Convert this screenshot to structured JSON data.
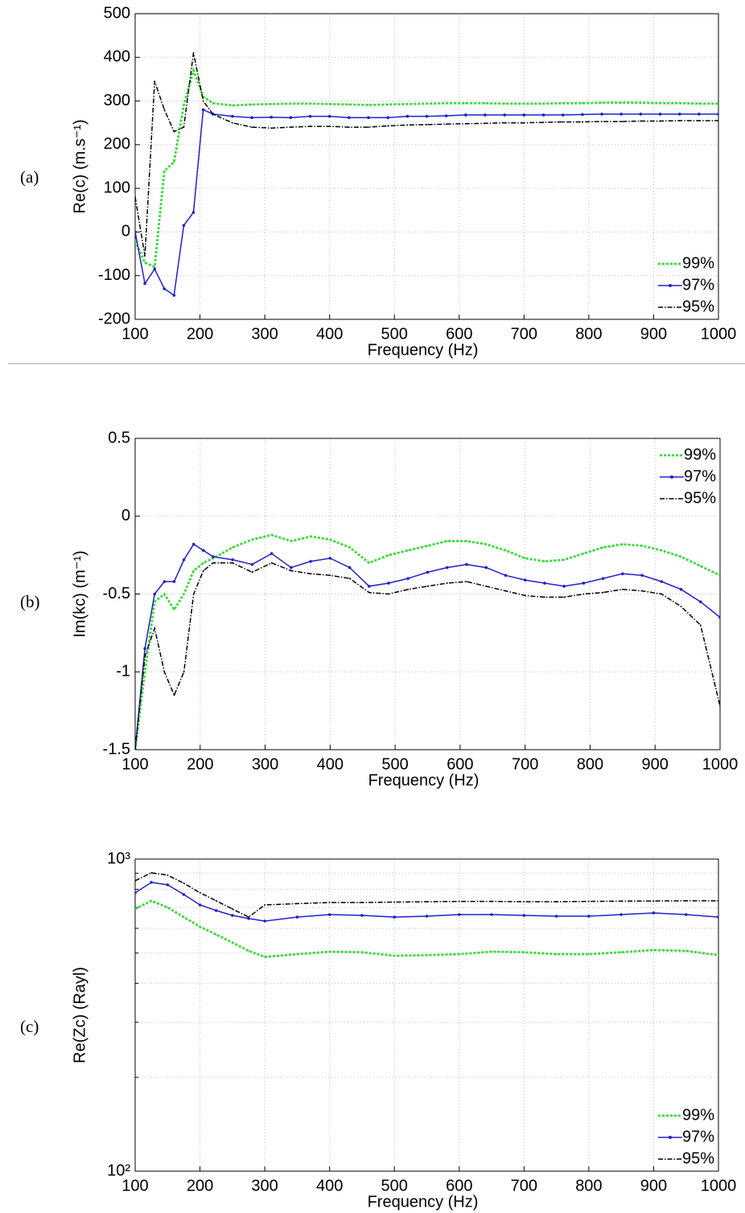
{
  "chart_data": [
    {
      "type": "line",
      "panel_label": "(a)",
      "xlabel": "Frequency (Hz)",
      "ylabel": "Re(c) (m.s⁻¹)",
      "xlim": [
        100,
        1000
      ],
      "xticks": [
        100,
        200,
        300,
        400,
        500,
        600,
        700,
        800,
        900,
        1000
      ],
      "ylim": [
        -200,
        500
      ],
      "yticks": [
        -200,
        -100,
        0,
        100,
        200,
        300,
        400,
        500
      ],
      "grid": true,
      "legend": "lower right",
      "x": [
        100,
        115,
        130,
        145,
        160,
        175,
        190,
        205,
        220,
        250,
        280,
        310,
        340,
        370,
        400,
        430,
        460,
        490,
        520,
        550,
        580,
        610,
        640,
        670,
        700,
        730,
        760,
        790,
        820,
        850,
        880,
        910,
        940,
        970,
        1000
      ],
      "series": [
        {
          "name": "99%",
          "color": "#33dd33",
          "values": [
            -20,
            -70,
            -80,
            140,
            160,
            290,
            370,
            310,
            295,
            290,
            292,
            293,
            294,
            294,
            293,
            292,
            291,
            292,
            293,
            294,
            295,
            295,
            295,
            294,
            294,
            294,
            295,
            295,
            296,
            296,
            296,
            295,
            295,
            294,
            294
          ]
        },
        {
          "name": "97%",
          "color": "#2020cc",
          "values": [
            0,
            -118,
            -85,
            -130,
            -145,
            15,
            45,
            280,
            270,
            265,
            262,
            263,
            262,
            265,
            265,
            262,
            262,
            262,
            265,
            265,
            266,
            268,
            268,
            268,
            268,
            268,
            268,
            269,
            270,
            270,
            270,
            270,
            270,
            270,
            270
          ]
        },
        {
          "name": "95%",
          "color": "#000000",
          "values": [
            80,
            -55,
            345,
            280,
            230,
            240,
            410,
            300,
            270,
            250,
            240,
            238,
            240,
            242,
            242,
            240,
            240,
            243,
            245,
            246,
            247,
            248,
            249,
            250,
            250,
            251,
            252,
            252,
            253,
            253,
            254,
            254,
            255,
            255,
            255
          ]
        }
      ]
    },
    {
      "type": "line",
      "panel_label": "(b)",
      "xlabel": "Frequency (Hz)",
      "ylabel": "Im(kc) (m⁻¹)",
      "xlim": [
        100,
        1000
      ],
      "xticks": [
        100,
        200,
        300,
        400,
        500,
        600,
        700,
        800,
        900,
        1000
      ],
      "ylim": [
        -1.5,
        0.5
      ],
      "yticks": [
        -1.5,
        -1,
        -0.5,
        0,
        0.5
      ],
      "grid": true,
      "legend": "upper right",
      "x": [
        100,
        115,
        130,
        145,
        160,
        175,
        190,
        205,
        220,
        250,
        280,
        310,
        340,
        370,
        400,
        430,
        460,
        490,
        520,
        550,
        580,
        610,
        640,
        670,
        700,
        730,
        760,
        790,
        820,
        850,
        880,
        910,
        940,
        970,
        1000
      ],
      "series": [
        {
          "name": "99%",
          "color": "#33dd33",
          "values": [
            -1.5,
            -1.0,
            -0.55,
            -0.5,
            -0.6,
            -0.5,
            -0.35,
            -0.3,
            -0.27,
            -0.2,
            -0.15,
            -0.12,
            -0.16,
            -0.13,
            -0.15,
            -0.2,
            -0.3,
            -0.25,
            -0.22,
            -0.19,
            -0.16,
            -0.16,
            -0.18,
            -0.22,
            -0.27,
            -0.29,
            -0.28,
            -0.24,
            -0.2,
            -0.18,
            -0.19,
            -0.22,
            -0.26,
            -0.32,
            -0.38
          ]
        },
        {
          "name": "97%",
          "color": "#2020cc",
          "values": [
            -1.5,
            -0.85,
            -0.5,
            -0.42,
            -0.42,
            -0.28,
            -0.18,
            -0.22,
            -0.26,
            -0.28,
            -0.31,
            -0.24,
            -0.33,
            -0.29,
            -0.27,
            -0.33,
            -0.45,
            -0.43,
            -0.4,
            -0.36,
            -0.33,
            -0.31,
            -0.33,
            -0.38,
            -0.41,
            -0.43,
            -0.45,
            -0.43,
            -0.4,
            -0.37,
            -0.38,
            -0.42,
            -0.47,
            -0.55,
            -0.65
          ]
        },
        {
          "name": "95%",
          "color": "#000000",
          "values": [
            -1.5,
            -0.9,
            -0.72,
            -1.0,
            -1.15,
            -1.0,
            -0.5,
            -0.35,
            -0.3,
            -0.3,
            -0.36,
            -0.3,
            -0.35,
            -0.37,
            -0.38,
            -0.4,
            -0.49,
            -0.5,
            -0.47,
            -0.45,
            -0.43,
            -0.42,
            -0.45,
            -0.48,
            -0.51,
            -0.52,
            -0.52,
            -0.5,
            -0.49,
            -0.47,
            -0.48,
            -0.5,
            -0.58,
            -0.7,
            -1.22
          ]
        }
      ]
    },
    {
      "type": "line",
      "panel_label": "(c)",
      "xlabel": "Frequency (Hz)",
      "ylabel": "Re(Zc) (Rayl)",
      "xlim": [
        100,
        1000
      ],
      "xticks": [
        100,
        200,
        300,
        400,
        500,
        600,
        700,
        800,
        900,
        1000
      ],
      "ylim": [
        100,
        1000
      ],
      "yscale": "log",
      "yticks": [
        {
          "value": 100,
          "label": "10²"
        },
        {
          "value": 1000,
          "label": "10³"
        }
      ],
      "minor_yticks": [
        200,
        300,
        400,
        500,
        600,
        700,
        800,
        900
      ],
      "grid": true,
      "legend": "lower right",
      "x": [
        100,
        125,
        150,
        175,
        200,
        225,
        250,
        275,
        300,
        350,
        400,
        450,
        500,
        550,
        600,
        650,
        700,
        750,
        800,
        850,
        900,
        950,
        1000
      ],
      "series": [
        {
          "name": "99%",
          "color": "#33dd33",
          "values": [
            692,
            735,
            700,
            652,
            607,
            573,
            540,
            508,
            486,
            496,
            505,
            503,
            490,
            492,
            496,
            505,
            503,
            496,
            496,
            503,
            511,
            508,
            492
          ]
        },
        {
          "name": "97%",
          "color": "#2020cc",
          "values": [
            780,
            842,
            827,
            770,
            713,
            684,
            660,
            645,
            633,
            652,
            664,
            660,
            652,
            656,
            664,
            664,
            660,
            656,
            656,
            664,
            672,
            664,
            652
          ]
        },
        {
          "name": "95%",
          "color": "#000000",
          "values": [
            852,
            904,
            888,
            837,
            780,
            735,
            692,
            652,
            713,
            720,
            726,
            726,
            728,
            730,
            732,
            732,
            730,
            730,
            732,
            733,
            734,
            735,
            735
          ]
        }
      ]
    }
  ]
}
